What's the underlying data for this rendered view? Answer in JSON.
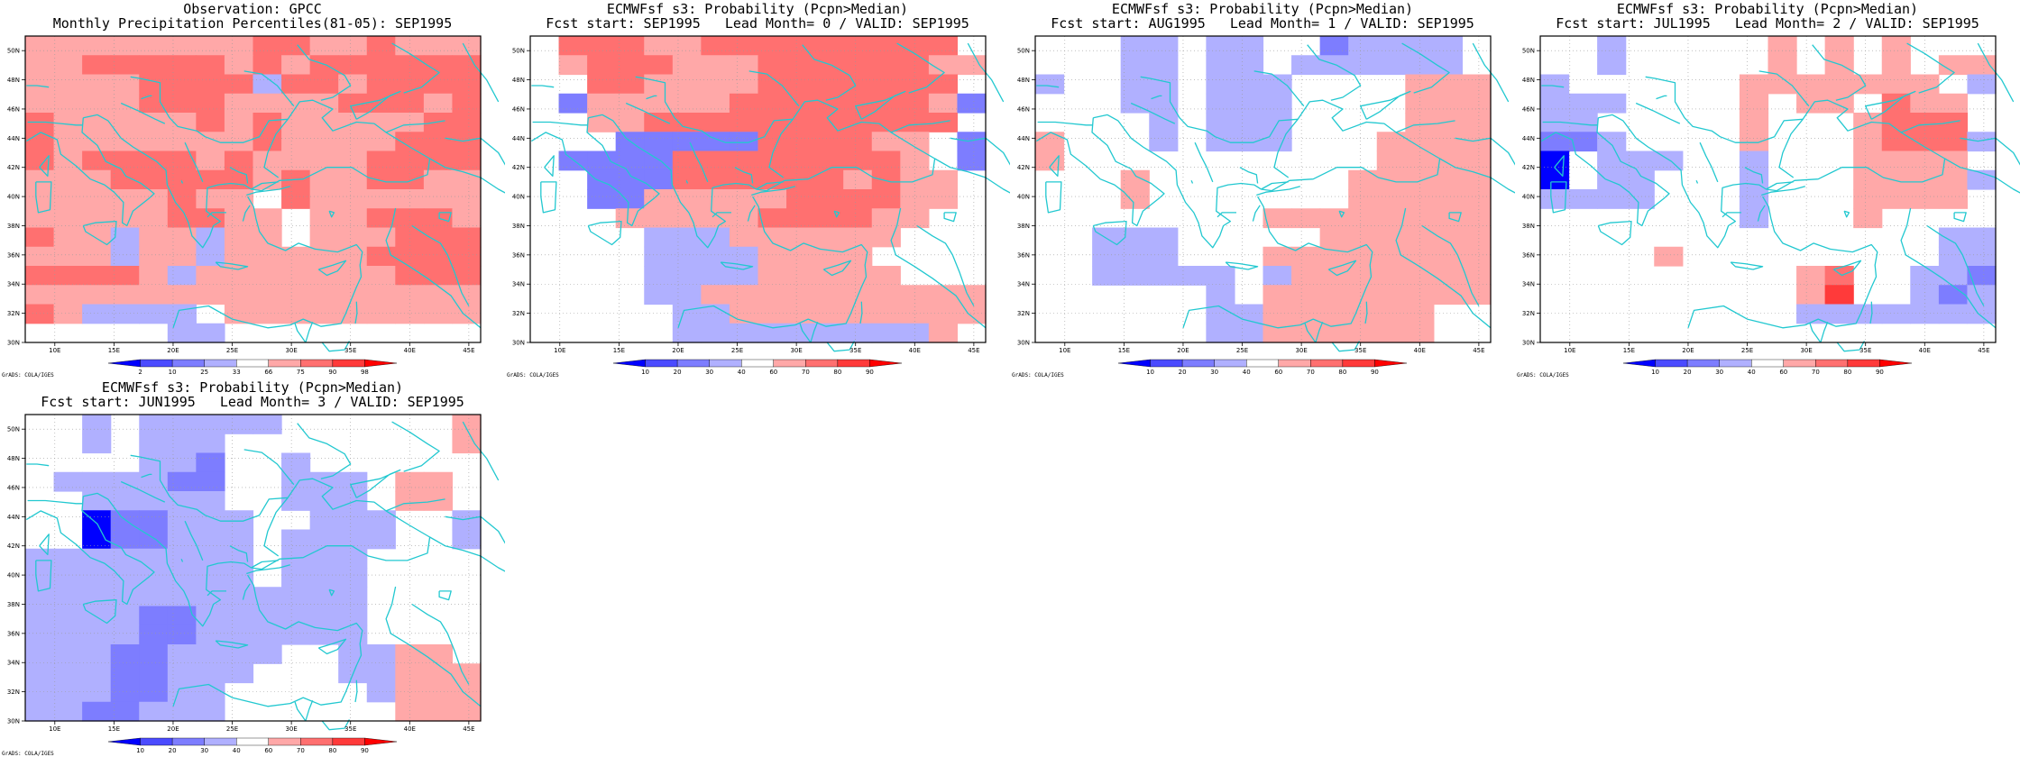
{
  "figure": {
    "footer_text": "GrADS: COLA/IGES",
    "lon_ticks": [
      "10E",
      "15E",
      "20E",
      "25E",
      "30E",
      "35E",
      "40E",
      "45E"
    ],
    "lat_ticks": [
      "30N",
      "32N",
      "34N",
      "36N",
      "38N",
      "40N",
      "42N",
      "44N",
      "46N",
      "48N",
      "50N"
    ],
    "colors": {
      "coast": "#22c8d0",
      "blue": [
        "#0000ff",
        "#4b4bff",
        "#7d7dff",
        "#b0b0ff"
      ],
      "red": [
        "#ffa8a8",
        "#ff7070",
        "#ff3a3a",
        "#ff0000"
      ],
      "white": "#ffffff"
    }
  },
  "panels": [
    {
      "title1": "Observation: GPCC",
      "title2": "Monthly Precipitation Percentiles(81-05): SEP1995",
      "colorbar_labels": [
        "2",
        "10",
        "25",
        "33",
        "66",
        "75",
        "90",
        "98"
      ],
      "grid": [
        "5555555566556555",
        "5566666565666666",
        "5555666646656666",
        "5555666555566656",
        "6555556565555566",
        "6555555565555666",
        "6566665655556666",
        "5556666656556655",
        "5555565506555555",
        "5555566550556665",
        "6554554550555666",
        "5554554555556666",
        "6666545555555666",
        "5555555555555555",
        "6544440555555555",
        "0000044000000000"
      ]
    },
    {
      "title1": "ECMWFsf s3: Probability (Pcpn>Median)",
      "title2": "Fcst start: SEP1995   Lead Month= 0 / VALID: SEP1995",
      "colorbar_labels": [
        "10",
        "20",
        "30",
        "40",
        "60",
        "70",
        "80",
        "90"
      ],
      "grid": [
        "0666556666666660",
        "0566655566666655",
        "0066555566666660",
        "0355555666666653",
        "0055666666666660",
        "0003333366665503",
        "0333366666666503",
        "0033366666656550",
        "0033555556666550",
        "0005555566665500",
        "0000444555555000",
        "0000444455550000",
        "0000444455555000",
        "0000445555555555",
        "0000044555555555",
        "0000044444444450"
      ]
    },
    {
      "title1": "ECMWFsf s3: Probability (Pcpn>Median)",
      "title2": "Fcst start: AUG1995   Lead Month= 1 / VALID: SEP1995",
      "colorbar_labels": [
        "10",
        "20",
        "30",
        "40",
        "60",
        "70",
        "80",
        "90"
      ],
      "grid": [
        "0004404400344440",
        "0004404404444440",
        "4004404440000555",
        "0004404440000555",
        "0000404440000555",
        "5000404440005555",
        "5000000000005555",
        "0005000000055555",
        "0005000000055555",
        "0000000055555555",
        "0044400000555555",
        "0044400055555555",
        "0044444045555555",
        "0000004055555555",
        "0000004455555500",
        "0000004455555500"
      ]
    },
    {
      "title1": "ECMWFsf s3: Probability (Pcpn>Median)",
      "title2": "Fcst start: JUL1995   Lead Month= 2 / VALID: SEP1995",
      "colorbar_labels": [
        "10",
        "20",
        "30",
        "40",
        "60",
        "70",
        "80",
        "90"
      ],
      "grid": [
        "0040000050505000",
        "0040000050505055",
        "4000000555555504",
        "4440000505506550",
        "4400000500056660",
        "3340000500056664",
        "1044400400055550",
        "1044000400055554",
        "4444000400055550",
        "0000000400050000",
        "0000000000000044",
        "0000500000000044",
        "0000000005600443",
        "0000000005700434",
        "0000000004444444",
        "0000000000000000"
      ]
    },
    {
      "title1": "ECMWFsf s3: Probability (Pcpn>Median)",
      "title2": "Fcst start: JUN1995   Lead Month= 3 / VALID: SEP1995",
      "colorbar_labels": [
        "10",
        "20",
        "30",
        "40",
        "60",
        "70",
        "80",
        "90"
      ],
      "grid": [
        "0040444440000005",
        "0040444000000005",
        "0000443004000000",
        "0444433004440550",
        "0044444004440550",
        "0013344400444004",
        "0013344404444004",
        "4444444404440000",
        "4444444404440000",
        "4444444444440000",
        "4444334444440000",
        "4444334444440000",
        "4443344440044550",
        "4443344400044555",
        "4443344000004555",
        "4433444000000555"
      ]
    }
  ]
}
